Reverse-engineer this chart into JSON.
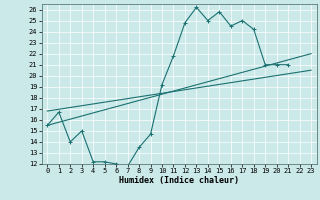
{
  "xlabel": "Humidex (Indice chaleur)",
  "ylabel": "",
  "background_color": "#cce9e9",
  "grid_color": "#aad4d4",
  "line_color": "#1a7070",
  "xlim": [
    -0.5,
    23.5
  ],
  "ylim": [
    12,
    26.5
  ],
  "xticks": [
    0,
    1,
    2,
    3,
    4,
    5,
    6,
    7,
    8,
    9,
    10,
    11,
    12,
    13,
    14,
    15,
    16,
    17,
    18,
    19,
    20,
    21,
    22,
    23
  ],
  "yticks": [
    12,
    13,
    14,
    15,
    16,
    17,
    18,
    19,
    20,
    21,
    22,
    23,
    24,
    25,
    26
  ],
  "line1_x": [
    0,
    1,
    2,
    3,
    4,
    5,
    6,
    7,
    8,
    9,
    10,
    11,
    12,
    13,
    14,
    15,
    16,
    17,
    18,
    19,
    20,
    21,
    22,
    23
  ],
  "line1_y": [
    15.5,
    16.7,
    14.0,
    15.0,
    12.2,
    12.2,
    12.0,
    11.8,
    13.5,
    14.7,
    19.2,
    21.8,
    24.8,
    26.2,
    25.0,
    25.8,
    24.5,
    25.0,
    24.2,
    21.0,
    21.0,
    21.0,
    null,
    null
  ],
  "line2_x": [
    0,
    23
  ],
  "line2_y": [
    15.5,
    22.0
  ],
  "line3_x": [
    0,
    23
  ],
  "line3_y": [
    16.8,
    20.5
  ],
  "marker": "+",
  "markersize": 3.5,
  "linewidth": 0.8,
  "axis_fontsize": 6,
  "tick_fontsize": 5
}
